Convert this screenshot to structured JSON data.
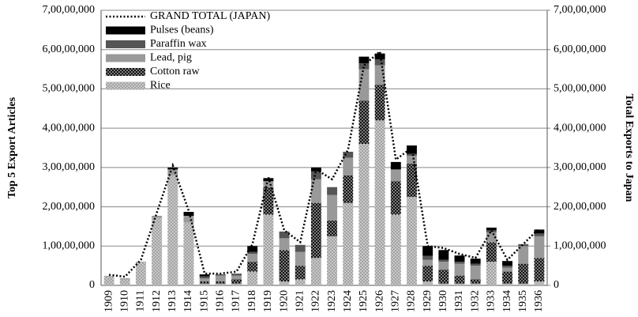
{
  "chart_data": {
    "type": "bar",
    "stacked": true,
    "y_label": "Top 5 Export Articles",
    "y2_label": "Total Exports to Japan",
    "categories": [
      "1909",
      "1910",
      "1911",
      "1912",
      "1913",
      "1914",
      "1915",
      "1916",
      "1917",
      "1918",
      "1919",
      "1920",
      "1921",
      "1922",
      "1923",
      "1924",
      "1925",
      "1926",
      "1927",
      "1928",
      "1929",
      "1930",
      "1931",
      "1932",
      "1933",
      "1934",
      "1935",
      "1936"
    ],
    "ylim": [
      0,
      700000000
    ],
    "yticks": [
      0,
      {
        "value": 100000000,
        "label": "1,00,00,000"
      },
      {
        "value": 200000000,
        "label": "2,00,00,000"
      },
      {
        "value": 300000000,
        "label": "3,00,00,000"
      },
      {
        "value": 400000000,
        "label": "4,00,00,000"
      },
      {
        "value": 500000000,
        "label": "5,00,00,000"
      },
      {
        "value": 600000000,
        "label": "6,00,00,000"
      },
      {
        "value": 700000000,
        "label": "7,00,00,000"
      }
    ],
    "y2lim": [
      0,
      700000000
    ],
    "y2ticks": [
      0,
      {
        "value": 100000000,
        "label": "1,00,00,000"
      },
      {
        "value": 200000000,
        "label": "2,00,00,000"
      },
      {
        "value": 300000000,
        "label": "3,00,00,000"
      },
      {
        "value": 400000000,
        "label": "4,00,00,000"
      },
      {
        "value": 500000000,
        "label": "5,00,00,000"
      },
      {
        "value": 600000000,
        "label": "6,00,00,000"
      },
      {
        "value": 700000000,
        "label": "7,00,00,000"
      }
    ],
    "grid": true,
    "legend": "upper left",
    "series": [
      {
        "name": "Rice",
        "color": "#c8c8c8",
        "pattern": "dots",
        "values": [
          22000000,
          15000000,
          58000000,
          172000000,
          280000000,
          160000000,
          5000000,
          5000000,
          5000000,
          35000000,
          180000000,
          10000000,
          15000000,
          70000000,
          125000000,
          210000000,
          360000000,
          420000000,
          180000000,
          225000000,
          10000000,
          5000000,
          5000000,
          5000000,
          60000000,
          5000000,
          5000000,
          10000000
        ]
      },
      {
        "name": "Cotton raw",
        "color": "#111111",
        "pattern": "dots",
        "values": [
          0,
          0,
          0,
          0,
          0,
          0,
          5000000,
          5000000,
          10000000,
          25000000,
          70000000,
          80000000,
          35000000,
          140000000,
          40000000,
          70000000,
          110000000,
          90000000,
          85000000,
          85000000,
          40000000,
          35000000,
          20000000,
          10000000,
          50000000,
          30000000,
          50000000,
          60000000
        ]
      },
      {
        "name": "Lead, pig",
        "color": "#999999",
        "values": [
          2000000,
          3000000,
          2000000,
          5000000,
          15000000,
          17000000,
          8000000,
          15000000,
          10000000,
          20000000,
          15000000,
          30000000,
          35000000,
          60000000,
          65000000,
          45000000,
          80000000,
          50000000,
          30000000,
          20000000,
          15000000,
          20000000,
          30000000,
          35000000,
          25000000,
          10000000,
          45000000,
          55000000
        ]
      },
      {
        "name": "Paraffin wax",
        "color": "#555555",
        "values": [
          0,
          0,
          0,
          0,
          0,
          0,
          5000000,
          3000000,
          5000000,
          5000000,
          0,
          17000000,
          18000000,
          20000000,
          20000000,
          15000000,
          15000000,
          15000000,
          0,
          5000000,
          10000000,
          5000000,
          5000000,
          5000000,
          5000000,
          5000000,
          5000000,
          7000000
        ]
      },
      {
        "name": "Pulses (beans)",
        "color": "#000000",
        "values": [
          0,
          0,
          0,
          0,
          5000000,
          10000000,
          5000000,
          0,
          0,
          15000000,
          8000000,
          0,
          0,
          10000000,
          0,
          0,
          17000000,
          15000000,
          19000000,
          21000000,
          25000000,
          25000000,
          16000000,
          13000000,
          7000000,
          12000000,
          0,
          10000000
        ]
      },
      {
        "name": "GRAND TOTAL (JAPAN)",
        "color": "#000000",
        "type": "line",
        "axis": "y2",
        "values": [
          27000000,
          22000000,
          65000000,
          185000000,
          305000000,
          190000000,
          30000000,
          30000000,
          35000000,
          105000000,
          275000000,
          140000000,
          110000000,
          295000000,
          270000000,
          345000000,
          560000000,
          595000000,
          320000000,
          350000000,
          100000000,
          95000000,
          80000000,
          70000000,
          140000000,
          65000000,
          105000000,
          145000000
        ]
      }
    ]
  }
}
